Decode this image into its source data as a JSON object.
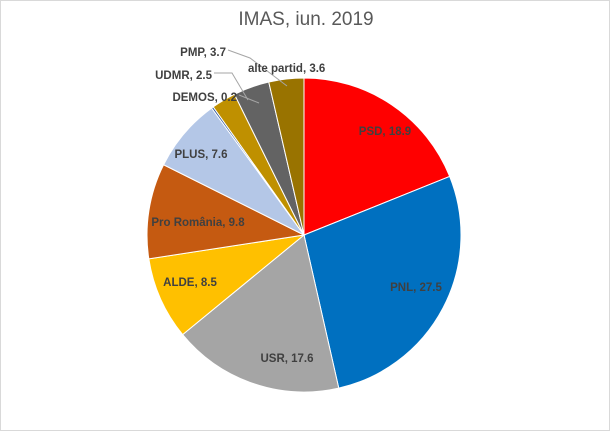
{
  "chart_data": {
    "type": "pie",
    "title": "IMAS, iun. 2019",
    "categories": [
      "PSD",
      "PNL",
      "USR",
      "ALDE",
      "Pro România",
      "PLUS",
      "DEMOS",
      "UDMR",
      "PMP",
      "alte partid"
    ],
    "values": [
      18.9,
      27.5,
      17.6,
      8.5,
      9.8,
      7.6,
      0.2,
      2.5,
      3.7,
      3.6
    ],
    "colors": [
      "#FF0000",
      "#0070C0",
      "#A5A5A5",
      "#FFC000",
      "#C55A11",
      "#B4C7E7",
      "#2F5597",
      "#BF9000",
      "#636363",
      "#997300"
    ],
    "data_labels": [
      "PSD, 18.9",
      "PNL, 27.5",
      "USR, 17.6",
      "ALDE, 8.5",
      "Pro România, 9.8",
      "PLUS, 7.6",
      "DEMOS, 0.2",
      "UDMR, 2.5",
      "PMP, 3.7",
      "alte partid, 3.6"
    ],
    "start_angle": "12 o'clock",
    "direction": "clockwise",
    "legend": "none"
  }
}
